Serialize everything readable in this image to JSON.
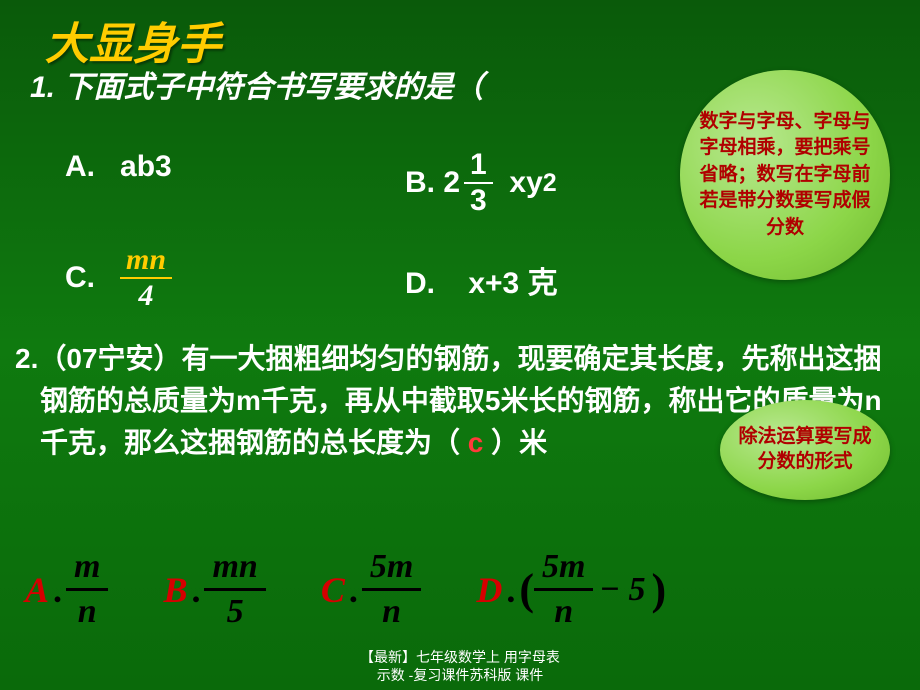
{
  "title": "大显身手",
  "q1_text": "1. 下面式子中符合书写要求的是（",
  "q1_paren_close": "）",
  "optA": {
    "letter": "A.",
    "expr": "ab3"
  },
  "optB": {
    "letter": "B.",
    "whole": "2",
    "num": "1",
    "den": "3",
    "tail": "xy",
    "sup": "2"
  },
  "optC": {
    "letter": "C.",
    "num": "mn",
    "den": "4"
  },
  "optD": {
    "letter": "D.",
    "expr": "x+3 克"
  },
  "bubble1": "数字与字母、字母与字母相乘，要把乘号省略；数写在字母前若是带分数要写成假分数",
  "bubble2": "除法运算要写成分数的形式",
  "q2_prefix": "2.（07宁安）有一大捆粗细均匀的钢筋，现要确定其长度，先称出这捆钢筋的总质量为m千克，再从中截取5米长的钢筋，称出它的质量为n千克，那么这捆钢筋的总长度为（",
  "q2_answer": "c",
  "q2_suffix": "）米",
  "opts2": {
    "A": {
      "letter": "A",
      "num": "m",
      "den": "n"
    },
    "B": {
      "letter": "B",
      "num": "mn",
      "den": "5"
    },
    "C": {
      "letter": "C",
      "num": "5m",
      "den": "n"
    },
    "D": {
      "letter": "D",
      "num": "5m",
      "den": "n",
      "tail": "− 5"
    }
  },
  "footer_line1": "【最新】七年级数学上 用字母表",
  "footer_line2": "示数 -复习课件苏科版 课件",
  "colors": {
    "bg_top": "#0a5a0a",
    "bg_mid": "#0f7a0f",
    "title": "#ffcc00",
    "text": "#ffffff",
    "bubble_bg": "#8cd648",
    "bubble_text": "#b00000",
    "option_letter": "#d60000",
    "answer": "#ff3a3a",
    "black": "#000000"
  }
}
